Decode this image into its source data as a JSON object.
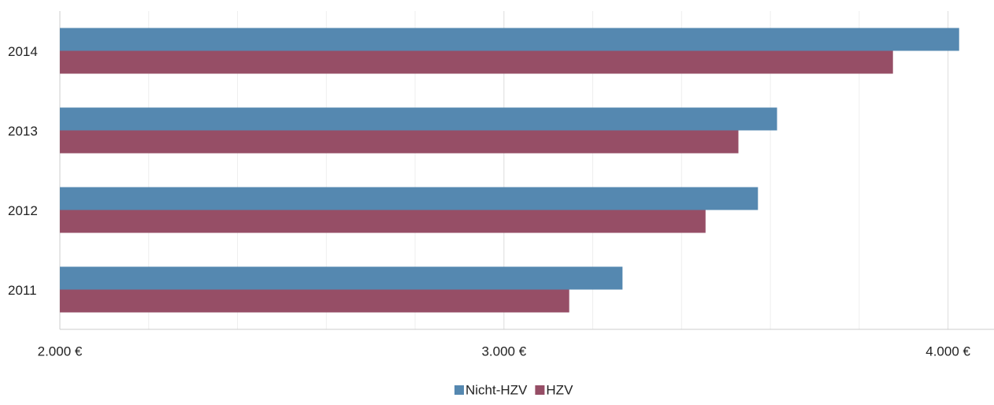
{
  "chart_data": {
    "type": "hbar",
    "categories": [
      "2011",
      "2012",
      "2013",
      "2014"
    ],
    "series": [
      {
        "name": "Nicht-HZV",
        "color": "#5588b0",
        "values": [
          3267,
          3572,
          3615,
          4025
        ]
      },
      {
        "name": "HZV",
        "color": "#964e66",
        "values": [
          3147,
          3454,
          3528,
          3876
        ]
      }
    ],
    "xlim": [
      2000,
      4100
    ],
    "xticks": [
      {
        "value": 2000,
        "label": "2.000 €"
      },
      {
        "value": 3000,
        "label": "3.000 €"
      },
      {
        "value": 4000,
        "label": "4.000 €"
      }
    ],
    "minor_xticks": [
      2200,
      2400,
      2600,
      2800,
      3200,
      3400,
      3600,
      3800
    ],
    "grid": true,
    "legend": "bottom"
  }
}
